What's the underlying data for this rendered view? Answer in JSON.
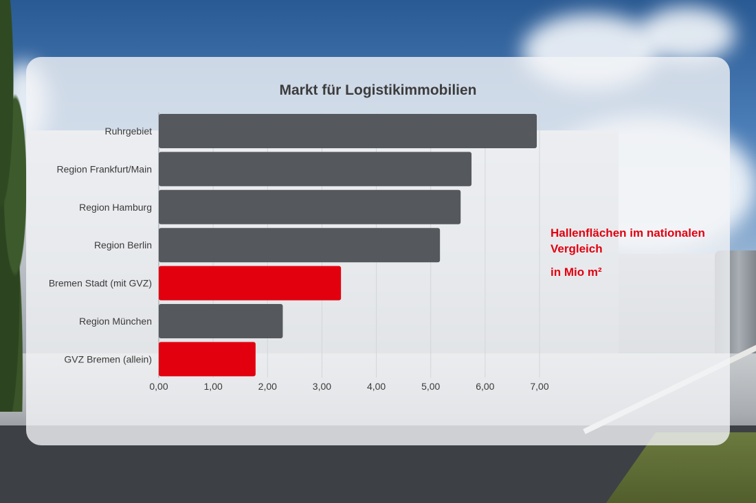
{
  "chart_data": {
    "type": "bar",
    "orientation": "horizontal",
    "title": "Markt für Logistikimmobilien",
    "categories": [
      "Ruhrgebiet",
      "Region Frankfurt/Main",
      "Region Hamburg",
      "Region Berlin",
      "Bremen Stadt (mit GVZ)",
      "Region München",
      "GVZ Bremen (allein)"
    ],
    "values": [
      6.95,
      5.75,
      5.55,
      5.17,
      3.35,
      2.28,
      1.78
    ],
    "bar_colors": [
      "#55585c",
      "#55585c",
      "#55585c",
      "#55585c",
      "#e2000f",
      "#55585c",
      "#e2000f"
    ],
    "xlim": [
      0,
      7
    ],
    "x_ticks": [
      "0,00",
      "1,00",
      "2,00",
      "3,00",
      "4,00",
      "5,00",
      "6,00",
      "7,00"
    ],
    "grid": "vertical",
    "legend": "none",
    "annotations": [
      "Hallenflächen im nationalen Vergleich",
      "in Mio m²"
    ]
  },
  "colors": {
    "bar_default": "#55585c",
    "bar_highlight": "#e2000f",
    "note_text": "#e2000f"
  }
}
